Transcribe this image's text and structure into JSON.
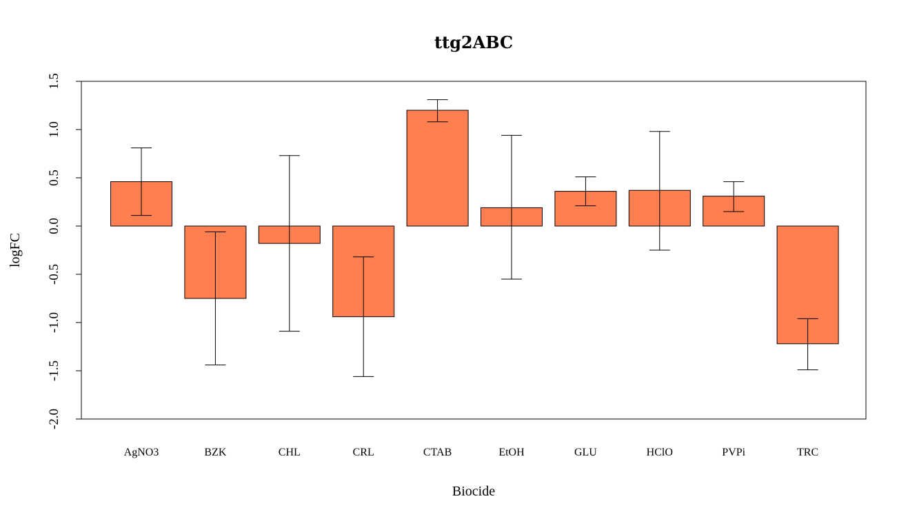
{
  "chart_data": {
    "type": "bar",
    "title": "ttg2ABC",
    "xlabel": "Biocide",
    "ylabel": "logFC",
    "ylim": [
      -2.0,
      1.5
    ],
    "yticks": [
      "-2.0",
      "-1.5",
      "-1.0",
      "-0.5",
      "0.0",
      "0.5",
      "1.0",
      "1.5"
    ],
    "bar_color": "#FF7F50",
    "categories": [
      "AgNO3",
      "BZK",
      "CHL",
      "CRL",
      "CTAB",
      "EtOH",
      "GLU",
      "HClO",
      "PVPi",
      "TRC"
    ],
    "values": [
      0.46,
      -0.75,
      -0.18,
      -0.94,
      1.2,
      0.19,
      0.36,
      0.37,
      0.31,
      -1.22
    ],
    "error_low": [
      0.11,
      -1.44,
      -1.09,
      -1.56,
      1.08,
      -0.55,
      0.21,
      -0.25,
      0.15,
      -1.49
    ],
    "error_high": [
      0.81,
      -0.06,
      0.73,
      -0.32,
      1.31,
      0.94,
      0.51,
      0.98,
      0.46,
      -0.96
    ]
  }
}
